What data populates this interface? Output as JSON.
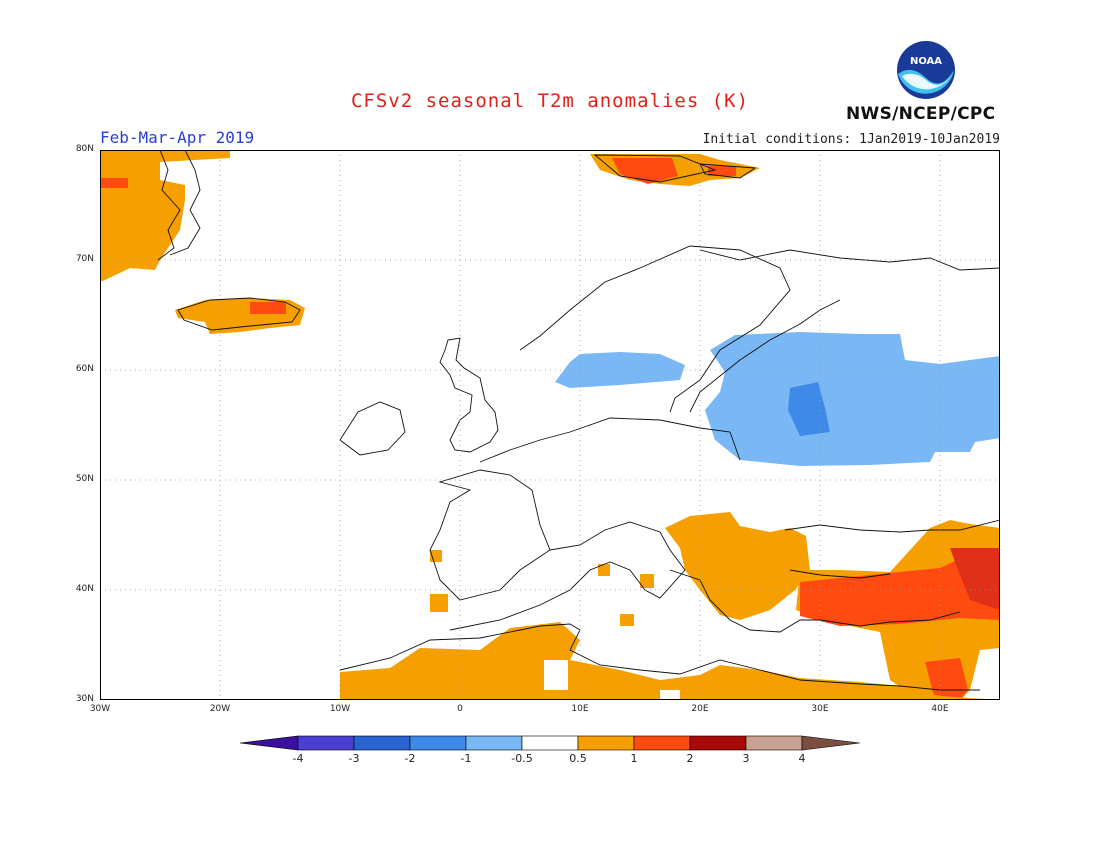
{
  "header": {
    "title": "CFSv2 seasonal T2m anomalies (K)",
    "period": "Feb-Mar-Apr 2019",
    "initial_conditions": "Initial conditions: 1Jan2019-10Jan2019",
    "agency": "NWS/NCEP/CPC",
    "logo_text": "NOAA"
  },
  "map": {
    "lat_labels": [
      "80N",
      "70N",
      "60N",
      "50N",
      "40N",
      "30N"
    ],
    "lon_labels": [
      "30W",
      "20W",
      "10W",
      "0",
      "10E",
      "20E",
      "30E",
      "40E"
    ],
    "extent": {
      "lon_min": -30,
      "lon_max": 45,
      "lat_min": 30,
      "lat_max": 80
    }
  },
  "legend": {
    "labels": [
      "-4",
      "-3",
      "-2",
      "-1",
      "-0.5",
      "0.5",
      "1",
      "2",
      "3",
      "4"
    ],
    "colors": [
      "#3a10a0",
      "#4a3fd0",
      "#2a64d0",
      "#3f8ae8",
      "#7ab8f5",
      "#ffffff",
      "#f5a000",
      "#ff4a10",
      "#a80a0a",
      "#c8a290",
      "#7a4e40"
    ]
  }
}
